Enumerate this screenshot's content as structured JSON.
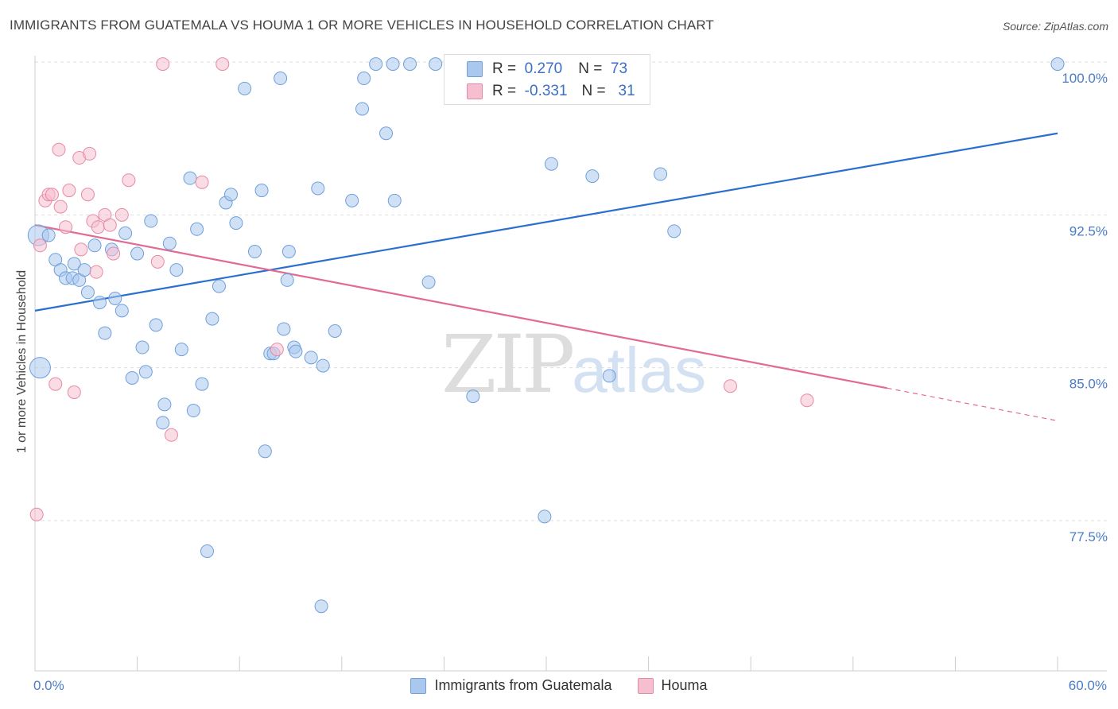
{
  "header": {
    "title": "IMMIGRANTS FROM GUATEMALA VS HOUMA 1 OR MORE VEHICLES IN HOUSEHOLD CORRELATION CHART",
    "source": "Source: ZipAtlas.com"
  },
  "legend": {
    "r_label": "R =",
    "n_label": "N =",
    "series1": {
      "r": "0.270",
      "n": "73"
    },
    "series2": {
      "r": "-0.331",
      "n": "31"
    }
  },
  "bottom_legend": {
    "series1": "Immigrants from Guatemala",
    "series2": "Houma"
  },
  "watermark": {
    "zip": "ZIP",
    "atlas": "atlas"
  },
  "colors": {
    "blue_fill": "#aac8ee",
    "blue_stroke": "#6f9fdc",
    "blue_line": "#2a6fd0",
    "pink_fill": "#f6bfd0",
    "pink_stroke": "#e78aa6",
    "pink_line": "#e26a93",
    "grid": "#dddddd"
  },
  "chart_data": {
    "type": "scatter",
    "title": "IMMIGRANTS FROM GUATEMALA VS HOUMA 1 OR MORE VEHICLES IN HOUSEHOLD CORRELATION CHART",
    "xlabel": "",
    "ylabel": "1 or more Vehicles in Household",
    "xlim": [
      0,
      60
    ],
    "ylim": [
      72,
      101
    ],
    "x_tick_labels": {
      "left": "0.0%",
      "right": "60.0%"
    },
    "y_ticks": [
      {
        "value": 100,
        "label": "100.0%"
      },
      {
        "value": 92.5,
        "label": "92.5%"
      },
      {
        "value": 85,
        "label": "85.0%"
      },
      {
        "value": 77.5,
        "label": "77.5%"
      }
    ],
    "series": [
      {
        "name": "Immigrants from Guatemala",
        "color": "blue",
        "r": 0.27,
        "n": 73,
        "trend": {
          "x0": 0,
          "y0": 87.8,
          "x1": 60,
          "y1": 96.5
        },
        "points": [
          {
            "x": 0.2,
            "y": 91.5,
            "big": true
          },
          {
            "x": 0.3,
            "y": 85.0,
            "big": true
          },
          {
            "x": 0.8,
            "y": 91.5
          },
          {
            "x": 1.2,
            "y": 90.3
          },
          {
            "x": 1.5,
            "y": 89.8
          },
          {
            "x": 1.8,
            "y": 89.4
          },
          {
            "x": 2.2,
            "y": 89.4
          },
          {
            "x": 2.3,
            "y": 90.1
          },
          {
            "x": 2.6,
            "y": 89.3
          },
          {
            "x": 2.9,
            "y": 89.8
          },
          {
            "x": 3.1,
            "y": 88.7
          },
          {
            "x": 3.5,
            "y": 91.0
          },
          {
            "x": 3.8,
            "y": 88.2
          },
          {
            "x": 4.1,
            "y": 86.7
          },
          {
            "x": 4.5,
            "y": 90.8
          },
          {
            "x": 4.7,
            "y": 88.4
          },
          {
            "x": 5.1,
            "y": 87.8
          },
          {
            "x": 5.3,
            "y": 91.6
          },
          {
            "x": 5.7,
            "y": 84.5
          },
          {
            "x": 6.0,
            "y": 90.6
          },
          {
            "x": 6.3,
            "y": 86.0
          },
          {
            "x": 6.5,
            "y": 84.8
          },
          {
            "x": 6.8,
            "y": 92.2
          },
          {
            "x": 7.1,
            "y": 87.1
          },
          {
            "x": 7.5,
            "y": 82.3
          },
          {
            "x": 7.6,
            "y": 83.2
          },
          {
            "x": 7.9,
            "y": 91.1
          },
          {
            "x": 8.3,
            "y": 89.8
          },
          {
            "x": 8.6,
            "y": 85.9
          },
          {
            "x": 9.1,
            "y": 94.3
          },
          {
            "x": 9.3,
            "y": 82.9
          },
          {
            "x": 9.5,
            "y": 91.8
          },
          {
            "x": 9.8,
            "y": 84.2
          },
          {
            "x": 10.1,
            "y": 76.0
          },
          {
            "x": 10.4,
            "y": 87.4
          },
          {
            "x": 10.8,
            "y": 89.0
          },
          {
            "x": 11.2,
            "y": 93.1
          },
          {
            "x": 11.5,
            "y": 93.5
          },
          {
            "x": 11.8,
            "y": 92.1
          },
          {
            "x": 12.3,
            "y": 98.7
          },
          {
            "x": 12.9,
            "y": 90.7
          },
          {
            "x": 13.3,
            "y": 93.7
          },
          {
            "x": 13.5,
            "y": 80.9
          },
          {
            "x": 13.8,
            "y": 85.7
          },
          {
            "x": 14.0,
            "y": 85.7
          },
          {
            "x": 14.4,
            "y": 99.2
          },
          {
            "x": 14.6,
            "y": 86.9
          },
          {
            "x": 14.8,
            "y": 89.3
          },
          {
            "x": 14.9,
            "y": 90.7
          },
          {
            "x": 15.2,
            "y": 86.0
          },
          {
            "x": 15.3,
            "y": 85.8
          },
          {
            "x": 16.2,
            "y": 85.5
          },
          {
            "x": 16.6,
            "y": 93.8
          },
          {
            "x": 16.8,
            "y": 73.3
          },
          {
            "x": 16.9,
            "y": 85.1
          },
          {
            "x": 17.6,
            "y": 86.8
          },
          {
            "x": 18.6,
            "y": 93.2
          },
          {
            "x": 19.2,
            "y": 97.7
          },
          {
            "x": 19.3,
            "y": 99.2
          },
          {
            "x": 20.0,
            "y": 99.9
          },
          {
            "x": 20.6,
            "y": 96.5
          },
          {
            "x": 21.0,
            "y": 99.9
          },
          {
            "x": 21.1,
            "y": 93.2
          },
          {
            "x": 22.0,
            "y": 99.9
          },
          {
            "x": 23.1,
            "y": 89.2
          },
          {
            "x": 23.5,
            "y": 99.9
          },
          {
            "x": 25.7,
            "y": 83.6
          },
          {
            "x": 29.9,
            "y": 77.7
          },
          {
            "x": 30.3,
            "y": 95.0
          },
          {
            "x": 32.7,
            "y": 94.4
          },
          {
            "x": 33.7,
            "y": 84.6
          },
          {
            "x": 36.7,
            "y": 94.5
          },
          {
            "x": 37.5,
            "y": 91.7
          },
          {
            "x": 60.0,
            "y": 99.9
          }
        ]
      },
      {
        "name": "Houma",
        "color": "pink",
        "r": -0.331,
        "n": 31,
        "trend": {
          "x0": 0,
          "y0": 92.0,
          "x1": 50.0,
          "y1": 84.0,
          "dashed_to_x": 60,
          "dashed_to_y": 82.4
        },
        "points": [
          {
            "x": 0.1,
            "y": 77.8
          },
          {
            "x": 0.3,
            "y": 91.0
          },
          {
            "x": 0.6,
            "y": 93.2
          },
          {
            "x": 0.8,
            "y": 93.5
          },
          {
            "x": 1.0,
            "y": 93.5
          },
          {
            "x": 1.2,
            "y": 84.2
          },
          {
            "x": 1.4,
            "y": 95.7
          },
          {
            "x": 1.5,
            "y": 92.9
          },
          {
            "x": 1.8,
            "y": 91.9
          },
          {
            "x": 2.0,
            "y": 93.7
          },
          {
            "x": 2.3,
            "y": 83.8
          },
          {
            "x": 2.6,
            "y": 95.3
          },
          {
            "x": 2.7,
            "y": 90.8
          },
          {
            "x": 3.1,
            "y": 93.5
          },
          {
            "x": 3.2,
            "y": 95.5
          },
          {
            "x": 3.4,
            "y": 92.2
          },
          {
            "x": 3.6,
            "y": 89.7
          },
          {
            "x": 3.7,
            "y": 91.9
          },
          {
            "x": 4.1,
            "y": 92.5
          },
          {
            "x": 4.4,
            "y": 92.0
          },
          {
            "x": 4.6,
            "y": 90.6
          },
          {
            "x": 5.1,
            "y": 92.5
          },
          {
            "x": 5.5,
            "y": 94.2
          },
          {
            "x": 7.2,
            "y": 90.2
          },
          {
            "x": 7.5,
            "y": 99.9
          },
          {
            "x": 8.0,
            "y": 81.7
          },
          {
            "x": 9.8,
            "y": 94.1
          },
          {
            "x": 11.0,
            "y": 99.9
          },
          {
            "x": 14.2,
            "y": 85.9
          },
          {
            "x": 40.8,
            "y": 84.1
          },
          {
            "x": 45.3,
            "y": 83.4
          }
        ]
      }
    ]
  }
}
